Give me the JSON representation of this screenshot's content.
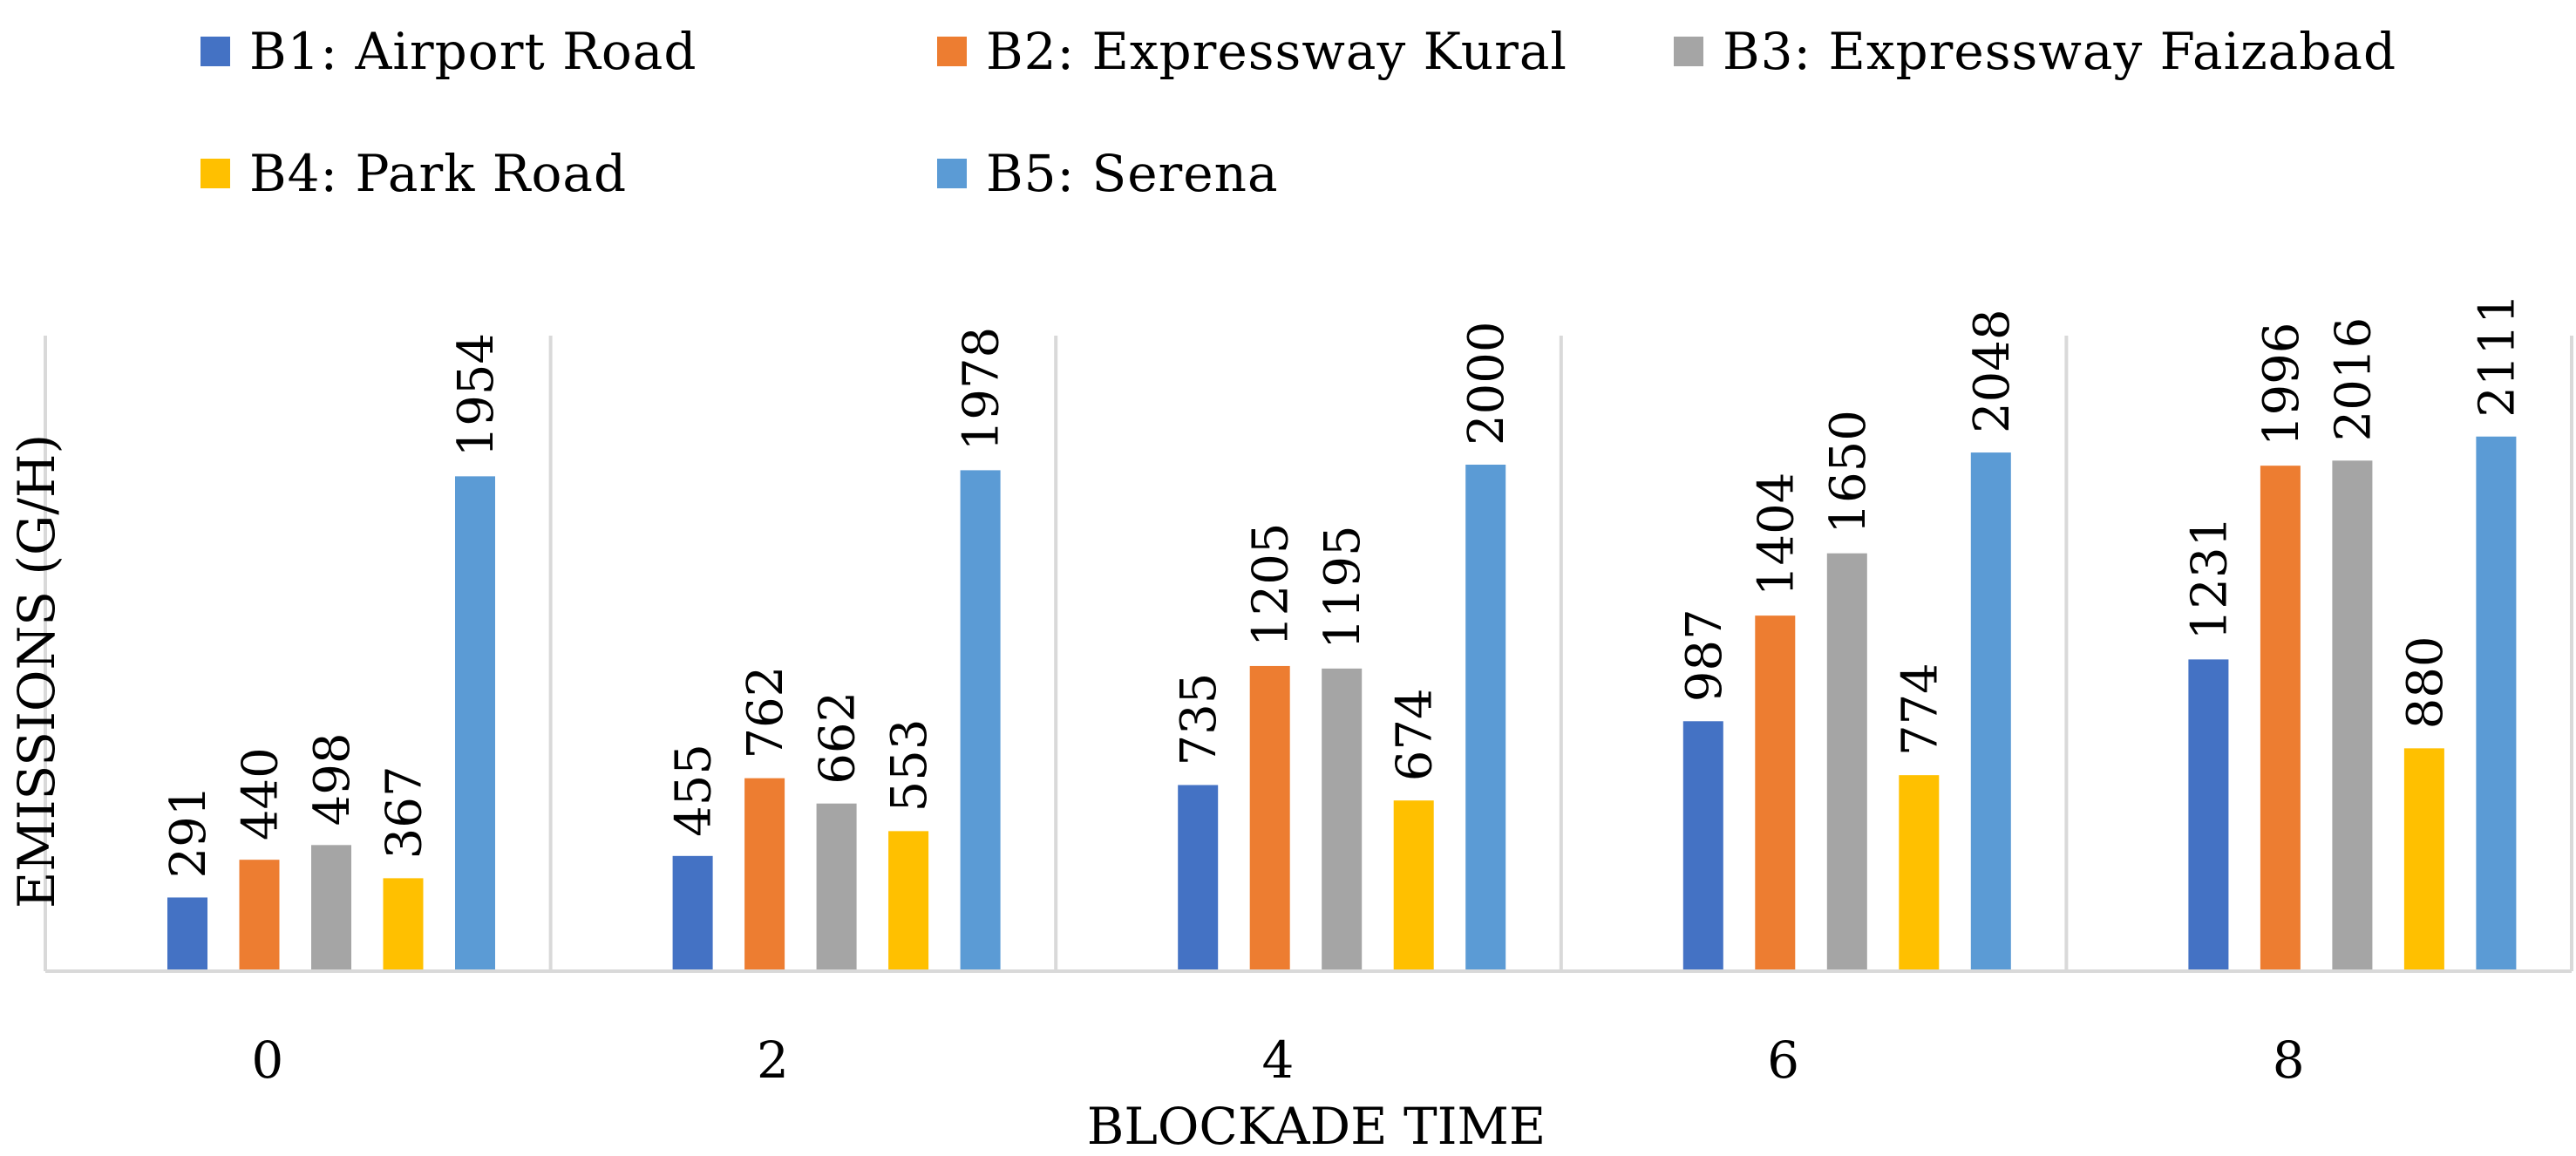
{
  "chart_data": {
    "type": "bar",
    "title": "",
    "xlabel": "BLOCKADE TIME",
    "ylabel": "EMISSIONS (G/H)",
    "categories": [
      "0",
      "2",
      "4",
      "6",
      "8"
    ],
    "ylim": [
      0,
      2500
    ],
    "grid": false,
    "legend_position": "top",
    "series": [
      {
        "name": "B1: Airport Road",
        "color": "#4472C4",
        "values": [
          291,
          455,
          735,
          987,
          1231
        ]
      },
      {
        "name": "B2: Expressway Kural",
        "color": "#ED7D31",
        "values": [
          440,
          762,
          1205,
          1404,
          1996
        ]
      },
      {
        "name": "B3: Expressway Faizabad",
        "color": "#A5A5A5",
        "values": [
          498,
          662,
          1195,
          1650,
          2016
        ]
      },
      {
        "name": "B4: Park Road",
        "color": "#FFC000",
        "values": [
          367,
          553,
          674,
          774,
          880
        ]
      },
      {
        "name": "B5: Serena",
        "color": "#5B9BD5",
        "values": [
          1954,
          1978,
          2000,
          2048,
          2111
        ]
      }
    ]
  }
}
